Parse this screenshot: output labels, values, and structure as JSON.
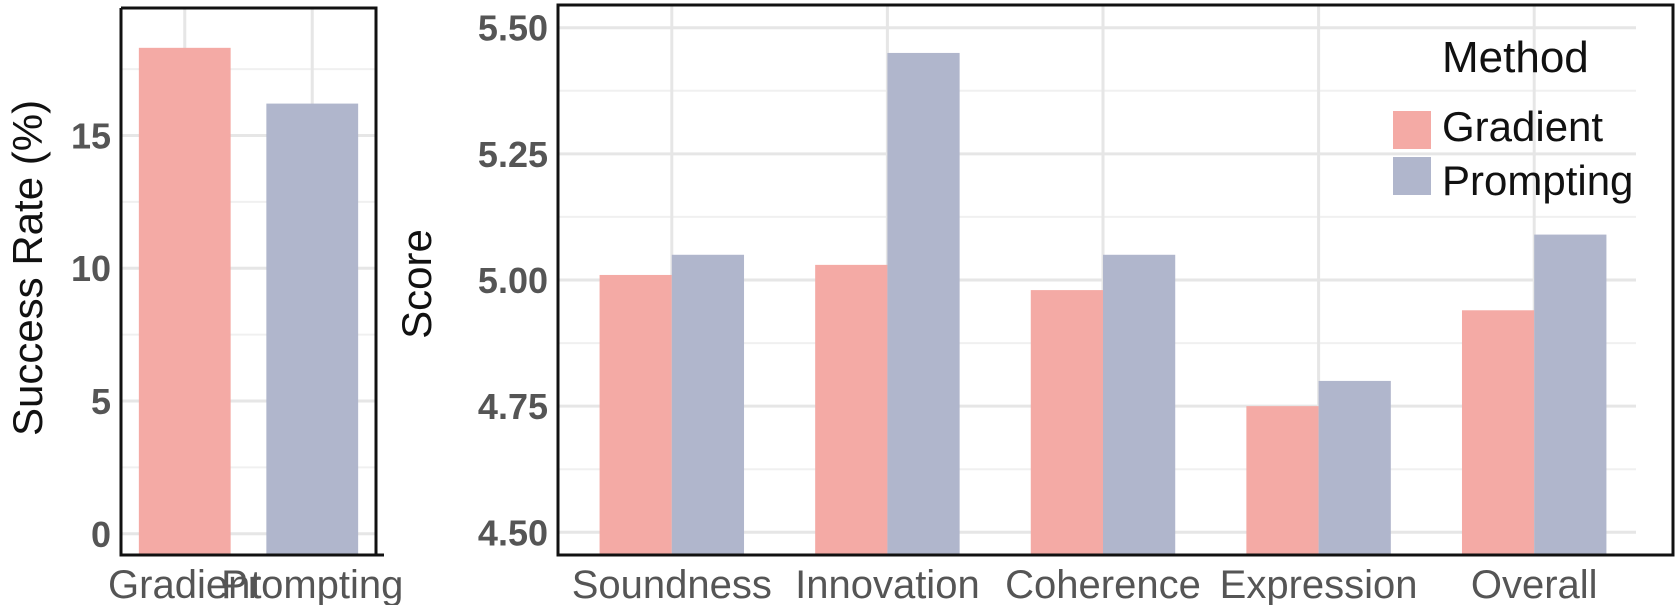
{
  "chart_data": [
    {
      "type": "bar",
      "categories": [
        "Gradient",
        "Prompting"
      ],
      "values": [
        18.3,
        16.2
      ],
      "colors": [
        "#f4aaa5",
        "#b0b6cc"
      ],
      "ylabel": "Success Rate (%)",
      "xlabel": "",
      "ylim": [
        -0.8,
        19.8
      ],
      "yticks": [
        0,
        5,
        10,
        15
      ],
      "grid": true
    },
    {
      "type": "bar",
      "categories": [
        "Soundness",
        "Innovation",
        "Coherence",
        "Expression",
        "Overall"
      ],
      "series": [
        {
          "name": "Gradient",
          "color": "#f4aaa5",
          "values": [
            5.01,
            5.03,
            4.98,
            4.75,
            4.94
          ]
        },
        {
          "name": "Prompting",
          "color": "#b0b6cc",
          "values": [
            5.05,
            5.45,
            5.05,
            4.8,
            5.09
          ]
        }
      ],
      "ylabel": "Score",
      "xlabel": "",
      "ylim": [
        4.455,
        5.545
      ],
      "yticks": [
        "4.50",
        "4.75",
        "5.00",
        "5.25",
        "5.50"
      ],
      "grid": true,
      "legend": {
        "title": "Method",
        "placement": "top-right"
      }
    }
  ]
}
